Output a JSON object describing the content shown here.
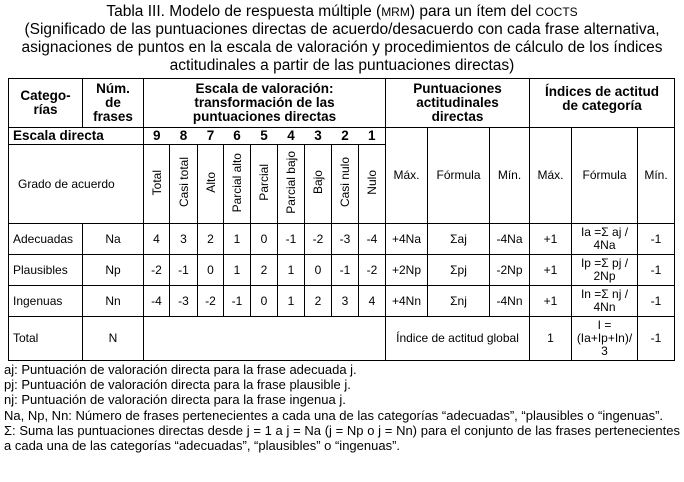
{
  "title": {
    "line1_pre": "Tabla III. Modelo de respuesta múltiple (",
    "line1_abbr": "MRM",
    "line1_mid": ") para un ítem del ",
    "line1_abbr2": "COCTS",
    "rest": "(Significado de las puntuaciones directas de acuerdo/desacuerdo con cada frase alternativa, asignaciones de puntos en la escala de valoración y procedimientos de cálculo de los índices actitudinales a partir de las puntuaciones directas)"
  },
  "header": {
    "categorias": "Catego-rías",
    "num_frases": "Núm. de frases",
    "escala": "Escala de valoración: transformación de las puntuaciones directas",
    "puntuaciones": "Puntuaciones actitudinales directas",
    "indices": "Índices de actitud de categoría",
    "escala_directa": "Escala directa",
    "scale_values": [
      "9",
      "8",
      "7",
      "6",
      "5",
      "4",
      "3",
      "2",
      "1"
    ],
    "grado": "Grado de acuerdo",
    "grado_labels": [
      "Total",
      "Casi total",
      "Alto",
      "Parcial alto",
      "Parcial",
      "Parcial bajo",
      "Bajo",
      "Casi nulo",
      "Nulo"
    ],
    "sub_cols": [
      "Máx.",
      "Fórmula",
      "Mín.",
      "Máx.",
      "Fórmula",
      "Mín."
    ]
  },
  "rows": [
    {
      "cat": "Adecuadas",
      "n": "Na",
      "scores": [
        "4",
        "3",
        "2",
        "1",
        "0",
        "-1",
        "-2",
        "-3",
        "-4"
      ],
      "pmax": "+4Na",
      "pform": "Σaj",
      "pmin": "-4Na",
      "imax": "+1",
      "iform": "Ia =Σ aj / 4Na",
      "imin": "-1"
    },
    {
      "cat": "Plausibles",
      "n": "Np",
      "scores": [
        "-2",
        "-1",
        "0",
        "1",
        "2",
        "1",
        "0",
        "-1",
        "-2"
      ],
      "pmax": "+2Np",
      "pform": "Σpj",
      "pmin": "-2Np",
      "imax": "+1",
      "iform": "Ip =Σ pj / 2Np",
      "imin": "-1"
    },
    {
      "cat": "Ingenuas",
      "n": "Nn",
      "scores": [
        "-4",
        "-3",
        "-2",
        "-1",
        "0",
        "1",
        "2",
        "3",
        "4"
      ],
      "pmax": "+4Nn",
      "pform": "Σnj",
      "pmin": "-4Nn",
      "imax": "+1",
      "iform": "In =Σ nj / 4Nn",
      "imin": "-1"
    }
  ],
  "total": {
    "cat": "Total",
    "n": "N",
    "global": "Índice de actitud global",
    "imax": "1",
    "iform": "I = (Ia+Ip+In)/ 3",
    "imin": "-1"
  },
  "notes": [
    "aj: Puntuación de valoración directa para la frase adecuada j.",
    "pj: Puntuación de valoración directa para la frase plausible j.",
    "nj: Puntuación de valoración directa para la frase ingenua j.",
    "Na, Np, Nn: Número de frases pertenecientes a cada una de las categorías “adecuadas”, “plausibles o “ingenuas”.",
    "Σ: Suma las puntuaciones directas desde j = 1 a j = Na (j = Np o j = Nn) para el conjunto de las frases pertenecientes a cada una de las categorías “adecuadas”, “plausibles” o “ingenuas”."
  ]
}
